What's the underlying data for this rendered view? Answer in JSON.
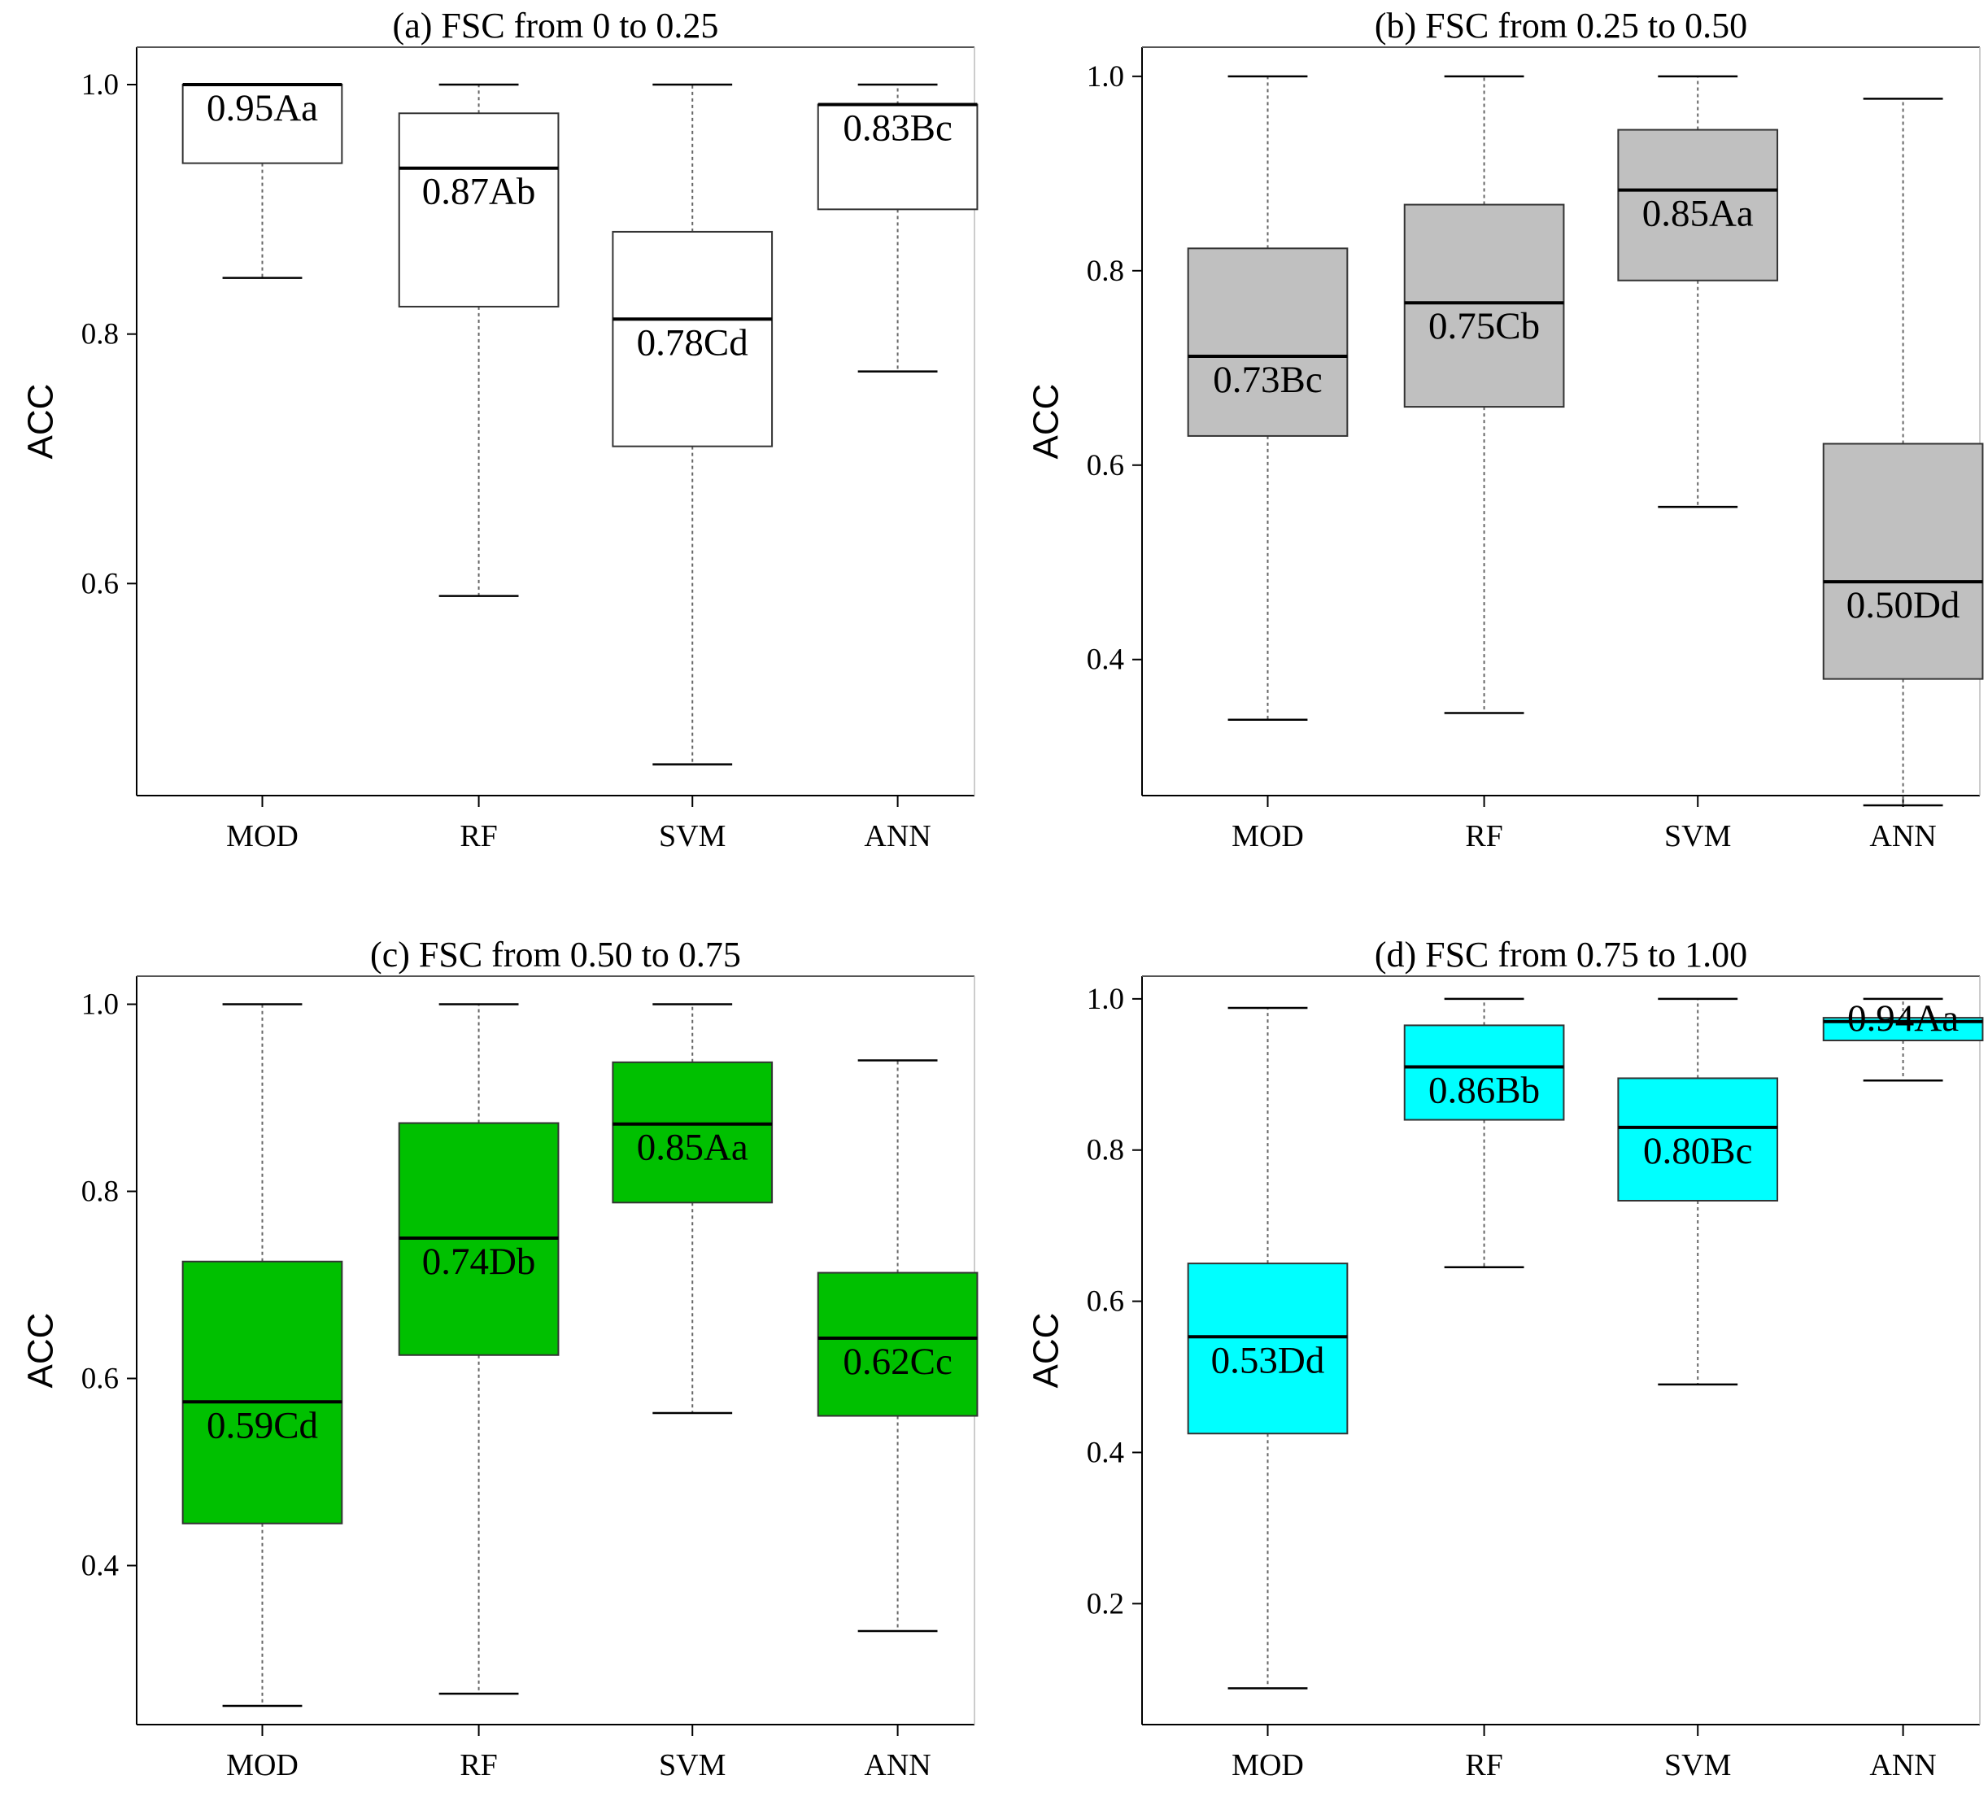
{
  "chart_data": [
    {
      "type": "boxplot",
      "title": "(a) FSC from 0 to 0.25",
      "ylabel": "ACC",
      "categories": [
        "MOD",
        "RF",
        "SVM",
        "ANN"
      ],
      "ylim": [
        0.43,
        1.03
      ],
      "yticks": [
        0.6,
        0.8,
        1.0
      ],
      "ytick_labels": [
        "0.6",
        "0.8",
        "1.0"
      ],
      "box_color": "#ffffff",
      "boxes": [
        {
          "whisker_low": 0.845,
          "q1": 0.937,
          "median": 1.0,
          "q3": 1.0,
          "whisker_high": 1.0,
          "label": "0.95Aa"
        },
        {
          "whisker_low": 0.59,
          "q1": 0.822,
          "median": 0.933,
          "q3": 0.977,
          "whisker_high": 1.0,
          "label": "0.87Ab"
        },
        {
          "whisker_low": 0.455,
          "q1": 0.71,
          "median": 0.812,
          "q3": 0.882,
          "whisker_high": 1.0,
          "label": "0.78Cd"
        },
        {
          "whisker_low": 0.77,
          "q1": 0.9,
          "median": 0.984,
          "q3": 0.984,
          "whisker_high": 1.0,
          "label": "0.83Bc"
        }
      ]
    },
    {
      "type": "boxplot",
      "title": "(b) FSC from 0.25 to 0.50",
      "ylabel": "ACC",
      "categories": [
        "MOD",
        "RF",
        "SVM",
        "ANN"
      ],
      "ylim": [
        0.26,
        1.03
      ],
      "yticks": [
        0.4,
        0.6,
        0.8,
        1.0
      ],
      "ytick_labels": [
        "0.4",
        "0.6",
        "0.8",
        "1.0"
      ],
      "box_color": "#c0c0c0",
      "boxes": [
        {
          "whisker_low": 0.338,
          "q1": 0.63,
          "median": 0.712,
          "q3": 0.823,
          "whisker_high": 1.0,
          "label": "0.73Bc"
        },
        {
          "whisker_low": 0.345,
          "q1": 0.66,
          "median": 0.767,
          "q3": 0.868,
          "whisker_high": 1.0,
          "label": "0.75Cb"
        },
        {
          "whisker_low": 0.557,
          "q1": 0.79,
          "median": 0.883,
          "q3": 0.945,
          "whisker_high": 1.0,
          "label": "0.85Aa"
        },
        {
          "whisker_low": 0.25,
          "q1": 0.38,
          "median": 0.48,
          "q3": 0.622,
          "whisker_high": 0.977,
          "label": "0.50Dd"
        }
      ]
    },
    {
      "type": "boxplot",
      "title": "(c) FSC from 0.50 to 0.75",
      "ylabel": "ACC",
      "categories": [
        "MOD",
        "RF",
        "SVM",
        "ANN"
      ],
      "ylim": [
        0.23,
        1.03
      ],
      "yticks": [
        0.4,
        0.6,
        0.8,
        1.0
      ],
      "ytick_labels": [
        "0.4",
        "0.6",
        "0.8",
        "1.0"
      ],
      "box_color": "#00c000",
      "boxes": [
        {
          "whisker_low": 0.25,
          "q1": 0.445,
          "median": 0.575,
          "q3": 0.725,
          "whisker_high": 1.0,
          "label": "0.59Cd"
        },
        {
          "whisker_low": 0.263,
          "q1": 0.625,
          "median": 0.75,
          "q3": 0.873,
          "whisker_high": 1.0,
          "label": "0.74Db"
        },
        {
          "whisker_low": 0.563,
          "q1": 0.788,
          "median": 0.872,
          "q3": 0.938,
          "whisker_high": 1.0,
          "label": "0.85Aa"
        },
        {
          "whisker_low": 0.33,
          "q1": 0.56,
          "median": 0.643,
          "q3": 0.713,
          "whisker_high": 0.94,
          "label": "0.62Cc"
        }
      ]
    },
    {
      "type": "boxplot",
      "title": "(d) FSC from 0.75 to 1.00",
      "ylabel": "ACC",
      "categories": [
        "MOD",
        "RF",
        "SVM",
        "ANN"
      ],
      "ylim": [
        0.04,
        1.03
      ],
      "yticks": [
        0.2,
        0.4,
        0.6,
        0.8,
        1.0
      ],
      "ytick_labels": [
        "0.2",
        "0.4",
        "0.6",
        "0.8",
        "1.0"
      ],
      "box_color": "#00ffff",
      "boxes": [
        {
          "whisker_low": 0.088,
          "q1": 0.425,
          "median": 0.553,
          "q3": 0.65,
          "whisker_high": 0.988,
          "label": "0.53Dd"
        },
        {
          "whisker_low": 0.645,
          "q1": 0.84,
          "median": 0.91,
          "q3": 0.965,
          "whisker_high": 1.0,
          "label": "0.86Bb"
        },
        {
          "whisker_low": 0.49,
          "q1": 0.733,
          "median": 0.83,
          "q3": 0.895,
          "whisker_high": 1.0,
          "label": "0.80Bc"
        },
        {
          "whisker_low": 0.892,
          "q1": 0.945,
          "median": 0.97,
          "q3": 0.975,
          "whisker_high": 1.0,
          "label": "0.94Aa"
        }
      ]
    }
  ]
}
